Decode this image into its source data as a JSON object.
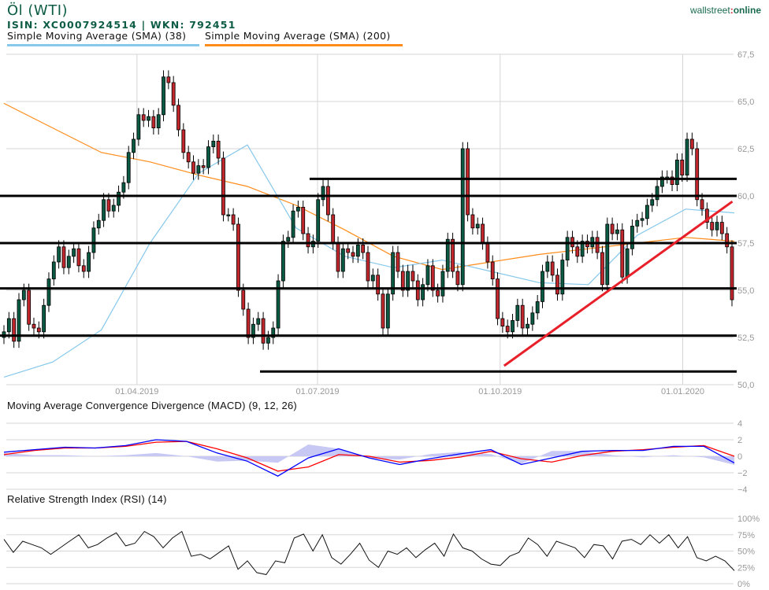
{
  "header": {
    "title": "Öl (WTI)",
    "ids": "ISIN: XC0007924514  | WKN: 792451",
    "legend": [
      {
        "label": "Simple Moving Average (SMA) (38)",
        "color": "#86c8ec"
      },
      {
        "label": "Simple Moving Average (SMA) (200)",
        "color": "#ff8c1a"
      }
    ],
    "logo_left": "wallstreet",
    "logo_colon": ":",
    "logo_right": "online"
  },
  "colors": {
    "up": "#0b5a43",
    "down": "#c1272d",
    "sma38": "#86c8ec",
    "sma200": "#ff8c1a",
    "trend": "#e8202a",
    "support": "#000000",
    "macd": "#0000ff",
    "signal": "#ff0000",
    "hist": "#c8c8f5"
  },
  "chart_data": [
    {
      "type": "candlestick",
      "title": "Öl (WTI)",
      "date_range": [
        "2019-01-22",
        "2020-01-27"
      ],
      "x_ticks": [
        {
          "date": "2019-04-01",
          "label": "01.04.2019"
        },
        {
          "date": "2019-07-01",
          "label": "01.07.2019"
        },
        {
          "date": "2019-10-01",
          "label": "01.10.2019"
        },
        {
          "date": "2020-01-01",
          "label": "01.01.2020"
        }
      ],
      "y_ticks": [
        {
          "v": 67.5,
          "label": "67,5"
        },
        {
          "v": 65,
          "label": "65,0"
        },
        {
          "v": 62.5,
          "label": "62,5"
        },
        {
          "v": 60,
          "label": "60,0"
        },
        {
          "v": 57.5,
          "label": "57,5"
        },
        {
          "v": 55,
          "label": "55,0"
        },
        {
          "v": 52.5,
          "label": "52,5"
        },
        {
          "v": 50,
          "label": "50,0"
        }
      ],
      "ylim": [
        50,
        67.5
      ],
      "first_open": 52.5,
      "closes": [
        52.8,
        53.5,
        52.3,
        54.5,
        55.0,
        53.2,
        53.0,
        52.8,
        54.2,
        55.6,
        56.5,
        57.3,
        56.2,
        56.8,
        57.2,
        56.3,
        56.0,
        57.0,
        58.3,
        58.7,
        59.8,
        59.2,
        59.5,
        60.2,
        60.7,
        62.3,
        63.0,
        64.3,
        64.0,
        64.2,
        63.6,
        64.3,
        66.3,
        66.0,
        64.8,
        63.5,
        62.3,
        61.8,
        61.2,
        61.6,
        61.5,
        62.6,
        62.9,
        62.0,
        59.0,
        59.0,
        58.5,
        55.0,
        54.0,
        52.5,
        53.2,
        53.5,
        52.2,
        52.5,
        53.0,
        55.5,
        57.6,
        57.8,
        59.2,
        59.4,
        58.0,
        57.3,
        57.6,
        59.8,
        60.5,
        59.0,
        57.5,
        56.0,
        57.2,
        57.0,
        56.8,
        57.4,
        57.0,
        55.5,
        55.8,
        54.8,
        53.0,
        54.8,
        57.0,
        56.0,
        55.0,
        56.0,
        55.5,
        54.5,
        55.3,
        56.3,
        55.0,
        54.7,
        56.0,
        57.7,
        56.0,
        55.3,
        62.5,
        59.0,
        58.3,
        58.5,
        57.5,
        56.5,
        55.6,
        53.5,
        53.1,
        52.8,
        53.4,
        54.2,
        53.0,
        53.2,
        53.8,
        54.4,
        56.0,
        56.5,
        55.8,
        54.8,
        56.6,
        57.8,
        57.3,
        56.8,
        57.6,
        57.3,
        57.8,
        57.0,
        55.3,
        58.5,
        58.0,
        58.2,
        55.7,
        57.2,
        58.4,
        58.7,
        58.8,
        59.5,
        59.8,
        60.5,
        61.0,
        61.0,
        60.6,
        61.9,
        61.1,
        63.0,
        62.5,
        59.8,
        59.3,
        58.6,
        58.2,
        58.6,
        58.0,
        57.3,
        54.5
      ],
      "sma38": [
        50.4,
        51.2,
        52.9,
        57.5,
        61.2,
        62.7,
        58.3,
        56.8,
        56.2,
        56.6,
        56.0,
        55.4,
        55.3,
        57.9,
        59.3,
        59.1
      ],
      "sma200": [
        64.9,
        63.6,
        62.3,
        61.8,
        61.1,
        60.5,
        59.5,
        58.2,
        56.8,
        56.1,
        56.5,
        56.9,
        57.2,
        57.5,
        57.8,
        57.6
      ],
      "support_lines": [
        {
          "level": 60.9,
          "from": "2019-06-27"
        },
        {
          "level": 60.0,
          "from": "2019-01-22"
        },
        {
          "level": 57.5,
          "from": "2019-01-22"
        },
        {
          "level": 55.1,
          "from": "2019-01-22"
        },
        {
          "level": 52.6,
          "from": "2019-01-22"
        },
        {
          "level": 50.7,
          "from": "2019-06-02"
        }
      ],
      "trend_line": {
        "from": {
          "date": "2019-10-03",
          "v": 51.0
        },
        "to": {
          "date": "2020-01-26",
          "v": 59.7
        }
      }
    },
    {
      "type": "line",
      "title": "Moving Average Convergence Divergence (MACD) (9, 12, 26)",
      "ylim": [
        -4,
        4
      ],
      "y_ticks": [
        {
          "v": 4,
          "label": "4"
        },
        {
          "v": 2,
          "label": "2"
        },
        {
          "v": 0,
          "label": "0"
        },
        {
          "v": -2,
          "label": "−2"
        },
        {
          "v": -4,
          "label": "−4"
        }
      ],
      "macd": [
        0.5,
        0.8,
        1.1,
        1.0,
        1.3,
        2.0,
        1.8,
        0.4,
        -0.6,
        -2.4,
        -0.2,
        0.9,
        -0.2,
        -1.0,
        -0.3,
        0.3,
        0.8,
        -1.0,
        -0.2,
        0.6,
        0.7,
        0.7,
        1.2,
        1.2,
        -0.8
      ],
      "signal": [
        0.2,
        0.7,
        1.0,
        1.0,
        1.2,
        1.7,
        1.8,
        0.9,
        -0.2,
        -1.8,
        -1.3,
        0.2,
        0.0,
        -0.7,
        -0.5,
        -0.1,
        0.6,
        -0.3,
        -0.7,
        0.1,
        0.6,
        0.8,
        1.1,
        1.3,
        0.0
      ]
    },
    {
      "type": "line",
      "title": "Relative Strength Index (RSI) (14)",
      "ylim": [
        0,
        100
      ],
      "y_ticks": [
        {
          "v": 100,
          "label": "100%"
        },
        {
          "v": 75,
          "label": "75%"
        },
        {
          "v": 50,
          "label": "50%"
        },
        {
          "v": 25,
          "label": "25%"
        },
        {
          "v": 0,
          "label": "0%"
        }
      ],
      "rsi": [
        68,
        48,
        65,
        60,
        55,
        45,
        55,
        65,
        75,
        55,
        60,
        70,
        78,
        58,
        62,
        80,
        72,
        55,
        70,
        80,
        42,
        45,
        38,
        48,
        58,
        22,
        35,
        17,
        14,
        35,
        32,
        70,
        76,
        50,
        75,
        40,
        30,
        45,
        62,
        36,
        25,
        50,
        45,
        55,
        40,
        52,
        62,
        42,
        76,
        55,
        50,
        38,
        30,
        28,
        42,
        48,
        70,
        60,
        42,
        65,
        60,
        55,
        40,
        60,
        58,
        38,
        65,
        68,
        60,
        75,
        62,
        75,
        55,
        72,
        40,
        35,
        42,
        35,
        20
      ]
    }
  ]
}
